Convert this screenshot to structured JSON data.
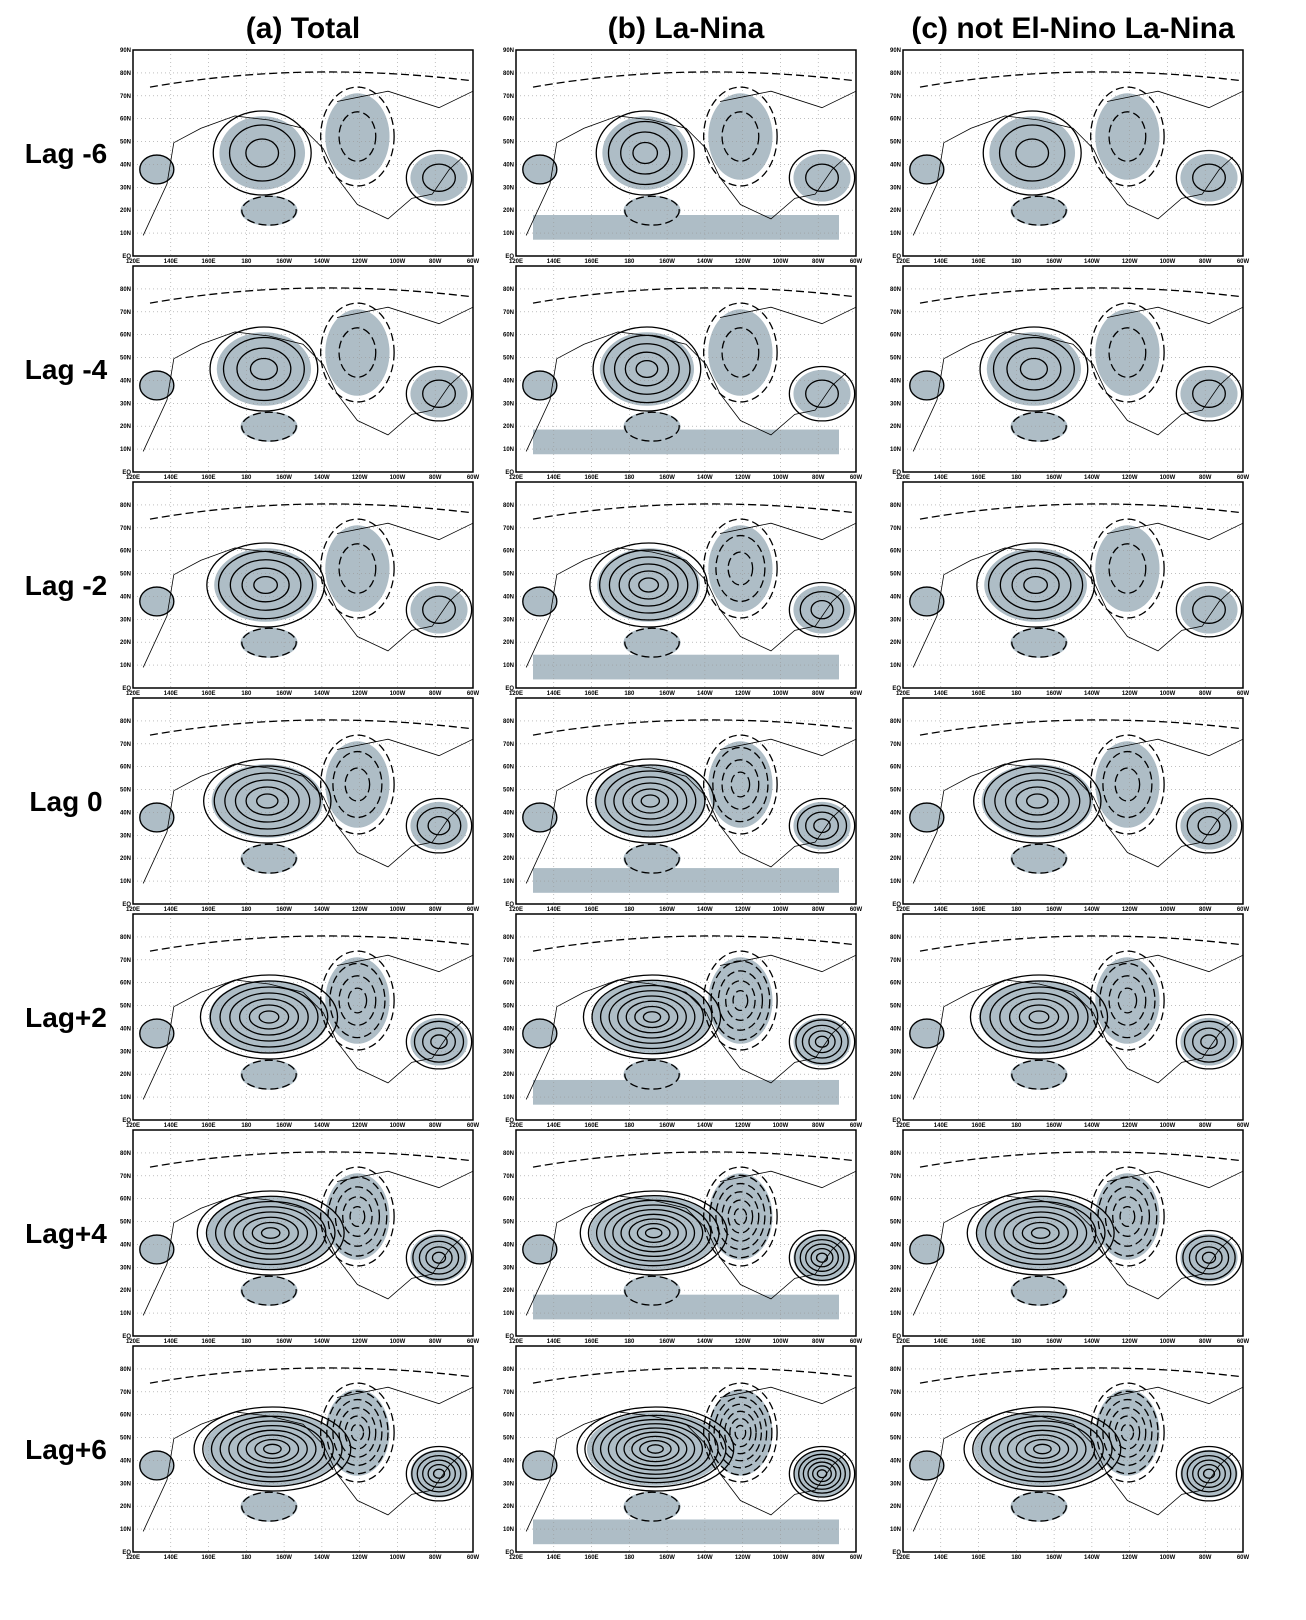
{
  "columns": [
    "(a) Total",
    "(b) La-Nina",
    "(c) not El-Nino La-Nina"
  ],
  "rows": [
    "Lag -6",
    "Lag -4",
    "Lag -2",
    "Lag 0",
    "Lag+2",
    "Lag+4",
    "Lag+6"
  ],
  "lat_ticks": [
    "EQ",
    "10N",
    "20N",
    "30N",
    "40N",
    "50N",
    "60N",
    "70N",
    "80N",
    "90N"
  ],
  "lon_ticks": [
    "120E",
    "140E",
    "160E",
    "180",
    "160W",
    "140W",
    "120W",
    "100W",
    "80W",
    "60W"
  ]
}
